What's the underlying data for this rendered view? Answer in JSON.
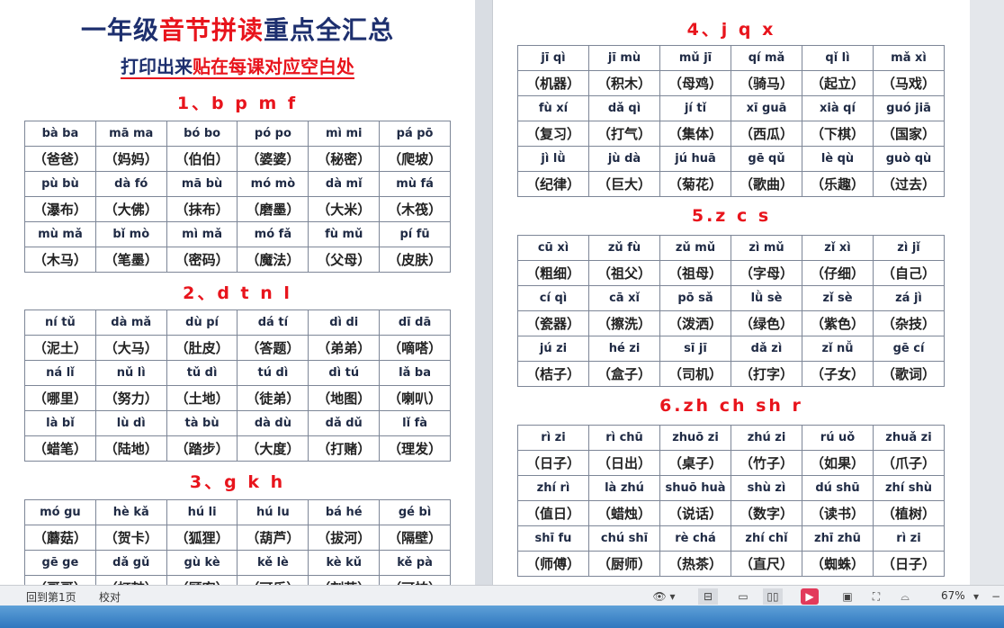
{
  "document": {
    "title_a": "一年级",
    "title_b": "音节拼读",
    "title_c": "重点全汇总",
    "subtitle_a": "打印出来",
    "subtitle_b": "贴在每课对应空白处",
    "sections": [
      {
        "heading": "1、b p m f",
        "rows": [
          [
            "bà ba",
            "mā ma",
            "bó bo",
            "pó po",
            "mì mi",
            "pá pō"
          ],
          [
            "（爸爸）",
            "（妈妈）",
            "（伯伯）",
            "（婆婆）",
            "（秘密）",
            "（爬坡）"
          ],
          [
            "pù bù",
            "dà fó",
            "mā bù",
            "mó mò",
            "dà mǐ",
            "mù fá"
          ],
          [
            "（瀑布）",
            "（大佛）",
            "（抹布）",
            "（磨墨）",
            "（大米）",
            "（木筏）"
          ],
          [
            "mù mǎ",
            "bǐ mò",
            "mì mǎ",
            "mó fǎ",
            "fù mǔ",
            "pí fū"
          ],
          [
            "（木马）",
            "（笔墨）",
            "（密码）",
            "（魔法）",
            "（父母）",
            "（皮肤）"
          ]
        ]
      },
      {
        "heading": "2、d t n l",
        "rows": [
          [
            "ní tǔ",
            "dà mǎ",
            "dù pí",
            "dá tí",
            "dì di",
            "dī dā"
          ],
          [
            "（泥土）",
            "（大马）",
            "（肚皮）",
            "（答题）",
            "（弟弟）",
            "（嘀嗒）"
          ],
          [
            "ná lǐ",
            "nǔ lì",
            "tǔ dì",
            "tú dì",
            "dì tú",
            "lǎ ba"
          ],
          [
            "（哪里）",
            "（努力）",
            "（土地）",
            "（徒弟）",
            "（地图）",
            "（喇叭）"
          ],
          [
            "là bǐ",
            "lù dì",
            "tà bù",
            "dà dù",
            "dǎ dǔ",
            "lǐ fà"
          ],
          [
            "（蜡笔）",
            "（陆地）",
            "（踏步）",
            "（大度）",
            "（打赌）",
            "（理发）"
          ]
        ]
      },
      {
        "heading": "3、g k h",
        "rows": [
          [
            "mó gu",
            "hè kǎ",
            "hú li",
            "hú lu",
            "bá hé",
            "gé bì"
          ],
          [
            "（蘑菇）",
            "（贺卡）",
            "（狐狸）",
            "（葫芦）",
            "（拔河）",
            "（隔壁）"
          ],
          [
            "gē ge",
            "dǎ gǔ",
            "gù kè",
            "kě lè",
            "kè kǔ",
            "kě pà"
          ],
          [
            "（哥哥）",
            "（打鼓）",
            "（顾客）",
            "（可乐）",
            "（刻苦）",
            "（可怕）"
          ]
        ]
      },
      {
        "heading": "4、j q x",
        "rows": [
          [
            "jī qì",
            "jī mù",
            "mǔ jī",
            "qí mǎ",
            "qǐ lì",
            "mǎ xì"
          ],
          [
            "（机器）",
            "（积木）",
            "（母鸡）",
            "（骑马）",
            "（起立）",
            "（马戏）"
          ],
          [
            "fù xí",
            "dǎ qì",
            "jí tǐ",
            "xī guā",
            "xià qí",
            "guó jiā"
          ],
          [
            "（复习）",
            "（打气）",
            "（集体）",
            "（西瓜）",
            "（下棋）",
            "（国家）"
          ],
          [
            "jì lǜ",
            "jù dà",
            "jú huā",
            "gē qǔ",
            "lè qù",
            "guò qù"
          ],
          [
            "（纪律）",
            "（巨大）",
            "（菊花）",
            "（歌曲）",
            "（乐趣）",
            "（过去）"
          ]
        ]
      },
      {
        "heading": "5.z c s",
        "rows": [
          [
            "cū xì",
            "zǔ fù",
            "zǔ mǔ",
            "zì mǔ",
            "zǐ xì",
            "zì jǐ"
          ],
          [
            "（粗细）",
            "（祖父）",
            "（祖母）",
            "（字母）",
            "（仔细）",
            "（自己）"
          ],
          [
            "cí qì",
            "cā xǐ",
            "pō sǎ",
            "lǜ sè",
            "zǐ sè",
            "zá jì"
          ],
          [
            "（瓷器）",
            "（擦洗）",
            "（泼洒）",
            "（绿色）",
            "（紫色）",
            "（杂技）"
          ],
          [
            "jú zi",
            "hé zi",
            "sī jī",
            "dǎ zì",
            "zǐ nǚ",
            "gē cí"
          ],
          [
            "（桔子）",
            "（盒子）",
            "（司机）",
            "（打字）",
            "（子女）",
            "（歌词）"
          ]
        ]
      },
      {
        "heading": "6.zh ch sh r",
        "rows": [
          [
            "rì zi",
            "rì chū",
            "zhuō zi",
            "zhú zi",
            "rú uǒ",
            "zhuǎ zi"
          ],
          [
            "（日子）",
            "（日出）",
            "（桌子）",
            "（竹子）",
            "（如果）",
            "（爪子）"
          ],
          [
            "zhí rì",
            "là zhú",
            "shuō huà",
            "shù zì",
            "dú shū",
            "zhí shù"
          ],
          [
            "（值日）",
            "（蜡烛）",
            "（说话）",
            "（数字）",
            "（读书）",
            "（植树）"
          ],
          [
            "shī fu",
            "chú shī",
            "rè chá",
            "zhí chǐ",
            "zhī zhū",
            "rì zi"
          ],
          [
            "（师傅）",
            "（厨师）",
            "（热茶）",
            "（直尺）",
            "（蜘蛛）",
            "（日子）"
          ]
        ]
      }
    ]
  },
  "statusbar": {
    "goto_first_page": "回到第1页",
    "proofread": "校对",
    "zoom": "67%"
  },
  "colors": {
    "title_blue": "#1d2f6e",
    "accent_red": "#e8141c",
    "play_button": "#e23a5b"
  }
}
